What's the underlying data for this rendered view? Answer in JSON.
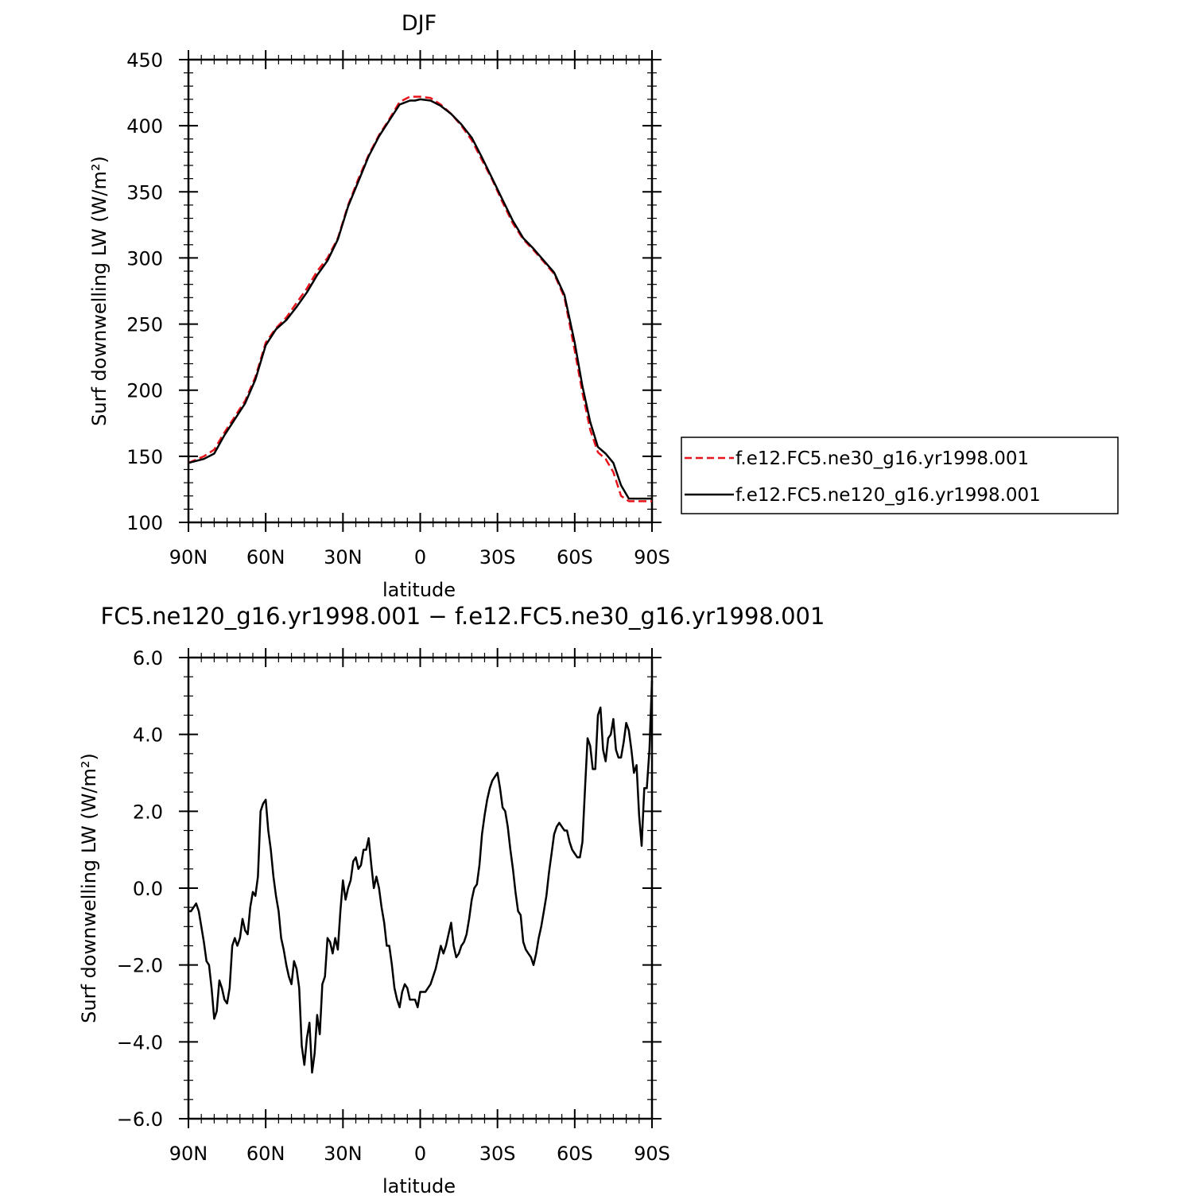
{
  "chart_data": [
    {
      "type": "line",
      "title": "DJF",
      "xlabel": "latitude",
      "ylabel": "Surf downwelling LW (W/m²)",
      "xlim": [
        90,
        -90
      ],
      "ylim": [
        100,
        450
      ],
      "x_ticks": [
        90,
        60,
        30,
        0,
        -30,
        -60,
        -90
      ],
      "x_tick_labels": [
        "90N",
        "60N",
        "30N",
        "0",
        "30S",
        "60S",
        "90S"
      ],
      "y_ticks": [
        100,
        150,
        200,
        250,
        300,
        350,
        400,
        450
      ],
      "y_tick_labels": [
        "100",
        "150",
        "200",
        "250",
        "300",
        "350",
        "400",
        "450"
      ],
      "grid": false,
      "legend_position": "right",
      "series": [
        {
          "name": "f.e12.FC5.ne30_g16.yr1998.001",
          "color": "#e8141c",
          "dash": "dashed",
          "x": [
            90,
            84,
            80,
            76,
            72,
            68,
            64,
            60,
            56,
            52,
            48,
            44,
            40,
            36,
            32,
            28,
            24,
            20,
            16,
            12,
            8,
            4,
            2,
            0,
            -4,
            -8,
            -12,
            -16,
            -20,
            -24,
            -28,
            -32,
            -36,
            -40,
            -44,
            -48,
            -52,
            -56,
            -60,
            -63,
            -66,
            -69,
            -72,
            -75,
            -78,
            -81,
            -84,
            -87,
            -90
          ],
          "y": [
            145,
            150,
            155,
            168,
            180,
            192,
            210,
            236,
            247,
            255,
            266,
            277,
            290,
            300,
            315,
            340,
            360,
            378,
            393,
            405,
            418,
            422,
            422,
            422,
            421,
            416,
            409,
            400,
            389,
            374,
            359,
            342,
            326,
            314,
            306,
            297,
            288,
            270,
            230,
            198,
            170,
            153,
            148,
            138,
            120,
            116,
            116,
            116,
            116
          ]
        },
        {
          "name": "f.e12.FC5.ne120_g16.yr1998.001",
          "color": "#000000",
          "dash": "solid",
          "x": [
            90,
            84,
            80,
            76,
            72,
            68,
            64,
            60,
            56,
            52,
            48,
            44,
            40,
            36,
            32,
            28,
            24,
            20,
            16,
            12,
            8,
            4,
            2,
            0,
            -4,
            -8,
            -12,
            -16,
            -20,
            -24,
            -28,
            -32,
            -36,
            -40,
            -44,
            -48,
            -52,
            -56,
            -60,
            -63,
            -66,
            -69,
            -72,
            -75,
            -78,
            -81,
            -84,
            -87,
            -90
          ],
          "y": [
            145,
            148,
            152,
            166,
            178,
            190,
            208,
            234,
            246,
            253,
            263,
            274,
            287,
            298,
            314,
            339,
            358,
            377,
            392,
            404,
            416,
            419,
            419,
            420,
            419,
            415,
            409,
            401,
            391,
            376,
            360,
            344,
            328,
            315,
            307,
            298,
            289,
            272,
            236,
            203,
            176,
            157,
            152,
            145,
            128,
            118,
            118,
            118,
            118
          ]
        }
      ]
    },
    {
      "type": "line",
      "title": "FC5.ne120_g16.yr1998.001 − f.e12.FC5.ne30_g16.yr1998.001",
      "xlabel": "latitude",
      "ylabel": "Surf downwelling LW (W/m²)",
      "xlim": [
        90,
        -90
      ],
      "ylim": [
        -6,
        6
      ],
      "x_ticks": [
        90,
        60,
        30,
        0,
        -30,
        -60,
        -90
      ],
      "x_tick_labels": [
        "90N",
        "60N",
        "30N",
        "0",
        "30S",
        "60S",
        "90S"
      ],
      "y_ticks": [
        -6,
        -4,
        -2,
        0,
        2,
        4,
        6
      ],
      "y_tick_labels": [
        "−6.0",
        "−4.0",
        "−2.0",
        "0.0",
        "2.0",
        "4.0",
        "6.0"
      ],
      "grid": false,
      "series": [
        {
          "color": "#000000",
          "dash": "solid",
          "x": [
            90,
            89,
            87,
            86,
            85,
            84,
            83,
            82,
            81,
            80,
            79,
            78,
            77,
            76,
            75,
            74,
            73,
            72,
            71,
            70,
            69,
            68,
            67,
            66,
            65,
            64,
            63,
            62,
            61,
            60,
            59,
            58,
            57,
            56,
            55,
            54,
            53,
            52,
            51,
            50,
            49,
            48,
            47,
            46,
            45,
            44,
            43,
            42,
            41,
            40,
            39,
            38,
            37,
            36,
            35,
            34,
            33,
            32,
            31,
            30,
            29,
            28,
            27,
            26,
            25,
            24,
            23,
            22,
            21,
            20,
            19,
            18,
            17,
            16,
            15,
            14,
            13,
            12,
            11,
            10,
            9,
            8,
            7,
            6,
            5,
            4,
            3,
            2,
            1,
            0,
            -1,
            -2,
            -3,
            -4,
            -5,
            -6,
            -7,
            -8,
            -9,
            -10,
            -11,
            -12,
            -13,
            -14,
            -15,
            -16,
            -17,
            -18,
            -19,
            -20,
            -21,
            -22,
            -23,
            -24,
            -25,
            -26,
            -27,
            -28,
            -29,
            -30,
            -31,
            -32,
            -33,
            -34,
            -35,
            -36,
            -37,
            -38,
            -39,
            -40,
            -41,
            -42,
            -43,
            -44,
            -45,
            -46,
            -47,
            -48,
            -49,
            -50,
            -51,
            -52,
            -53,
            -54,
            -55,
            -56,
            -57,
            -58,
            -59,
            -60,
            -61,
            -62,
            -63,
            -64,
            -65,
            -66,
            -67,
            -68,
            -69,
            -70,
            -71,
            -72,
            -73,
            -74,
            -75,
            -76,
            -77,
            -78,
            -79,
            -80,
            -81,
            -82,
            -83,
            -84,
            -85,
            -86,
            -87,
            -88,
            -89,
            -90
          ],
          "y": [
            -0.6,
            -0.6,
            -0.4,
            -0.6,
            -1.0,
            -1.4,
            -1.9,
            -2.0,
            -2.6,
            -3.4,
            -3.2,
            -2.4,
            -2.6,
            -2.9,
            -3.0,
            -2.6,
            -1.5,
            -1.3,
            -1.5,
            -1.3,
            -0.8,
            -1.1,
            -1.2,
            -0.5,
            -0.1,
            -0.2,
            0.3,
            2.0,
            2.2,
            2.3,
            1.5,
            1.0,
            0.3,
            -0.2,
            -0.6,
            -1.3,
            -1.6,
            -2.0,
            -2.3,
            -2.5,
            -1.9,
            -2.1,
            -2.6,
            -4.1,
            -4.6,
            -3.9,
            -3.5,
            -4.8,
            -4.3,
            -3.3,
            -3.8,
            -2.5,
            -2.3,
            -1.3,
            -1.4,
            -1.7,
            -1.3,
            -1.6,
            -0.6,
            0.2,
            -0.3,
            0.0,
            0.2,
            0.7,
            0.8,
            0.5,
            0.6,
            1.0,
            1.0,
            1.3,
            0.6,
            0.0,
            0.3,
            0.0,
            -0.5,
            -0.9,
            -1.5,
            -1.5,
            -2.0,
            -2.6,
            -2.9,
            -3.1,
            -2.7,
            -2.5,
            -2.6,
            -2.9,
            -2.9,
            -2.9,
            -3.1,
            -2.7,
            -2.7,
            -2.7,
            -2.6,
            -2.5,
            -2.3,
            -2.1,
            -1.8,
            -1.5,
            -1.7,
            -1.5,
            -1.2,
            -0.9,
            -1.5,
            -1.8,
            -1.7,
            -1.5,
            -1.4,
            -1.2,
            -0.8,
            -0.3,
            0.0,
            0.1,
            0.6,
            1.4,
            1.9,
            2.3,
            2.6,
            2.8,
            2.9,
            3.0,
            2.6,
            2.1,
            2.0,
            1.6,
            1.0,
            0.5,
            -0.1,
            -0.6,
            -0.7,
            -1.4,
            -1.6,
            -1.7,
            -1.8,
            -2.0,
            -1.7,
            -1.3,
            -1.0,
            -0.6,
            -0.2,
            0.4,
            0.9,
            1.4,
            1.6,
            1.7,
            1.6,
            1.5,
            1.5,
            1.2,
            1.0,
            0.9,
            0.8,
            0.8,
            1.2,
            2.6,
            3.9,
            3.7,
            3.1,
            3.1,
            4.5,
            4.7,
            3.6,
            3.3,
            3.9,
            4.0,
            4.4,
            3.6,
            3.4,
            3.4,
            3.8,
            4.3,
            4.1,
            3.6,
            3.0,
            3.2,
            1.9,
            1.1,
            2.6,
            2.6,
            3.6,
            5.4
          ]
        }
      ]
    }
  ]
}
